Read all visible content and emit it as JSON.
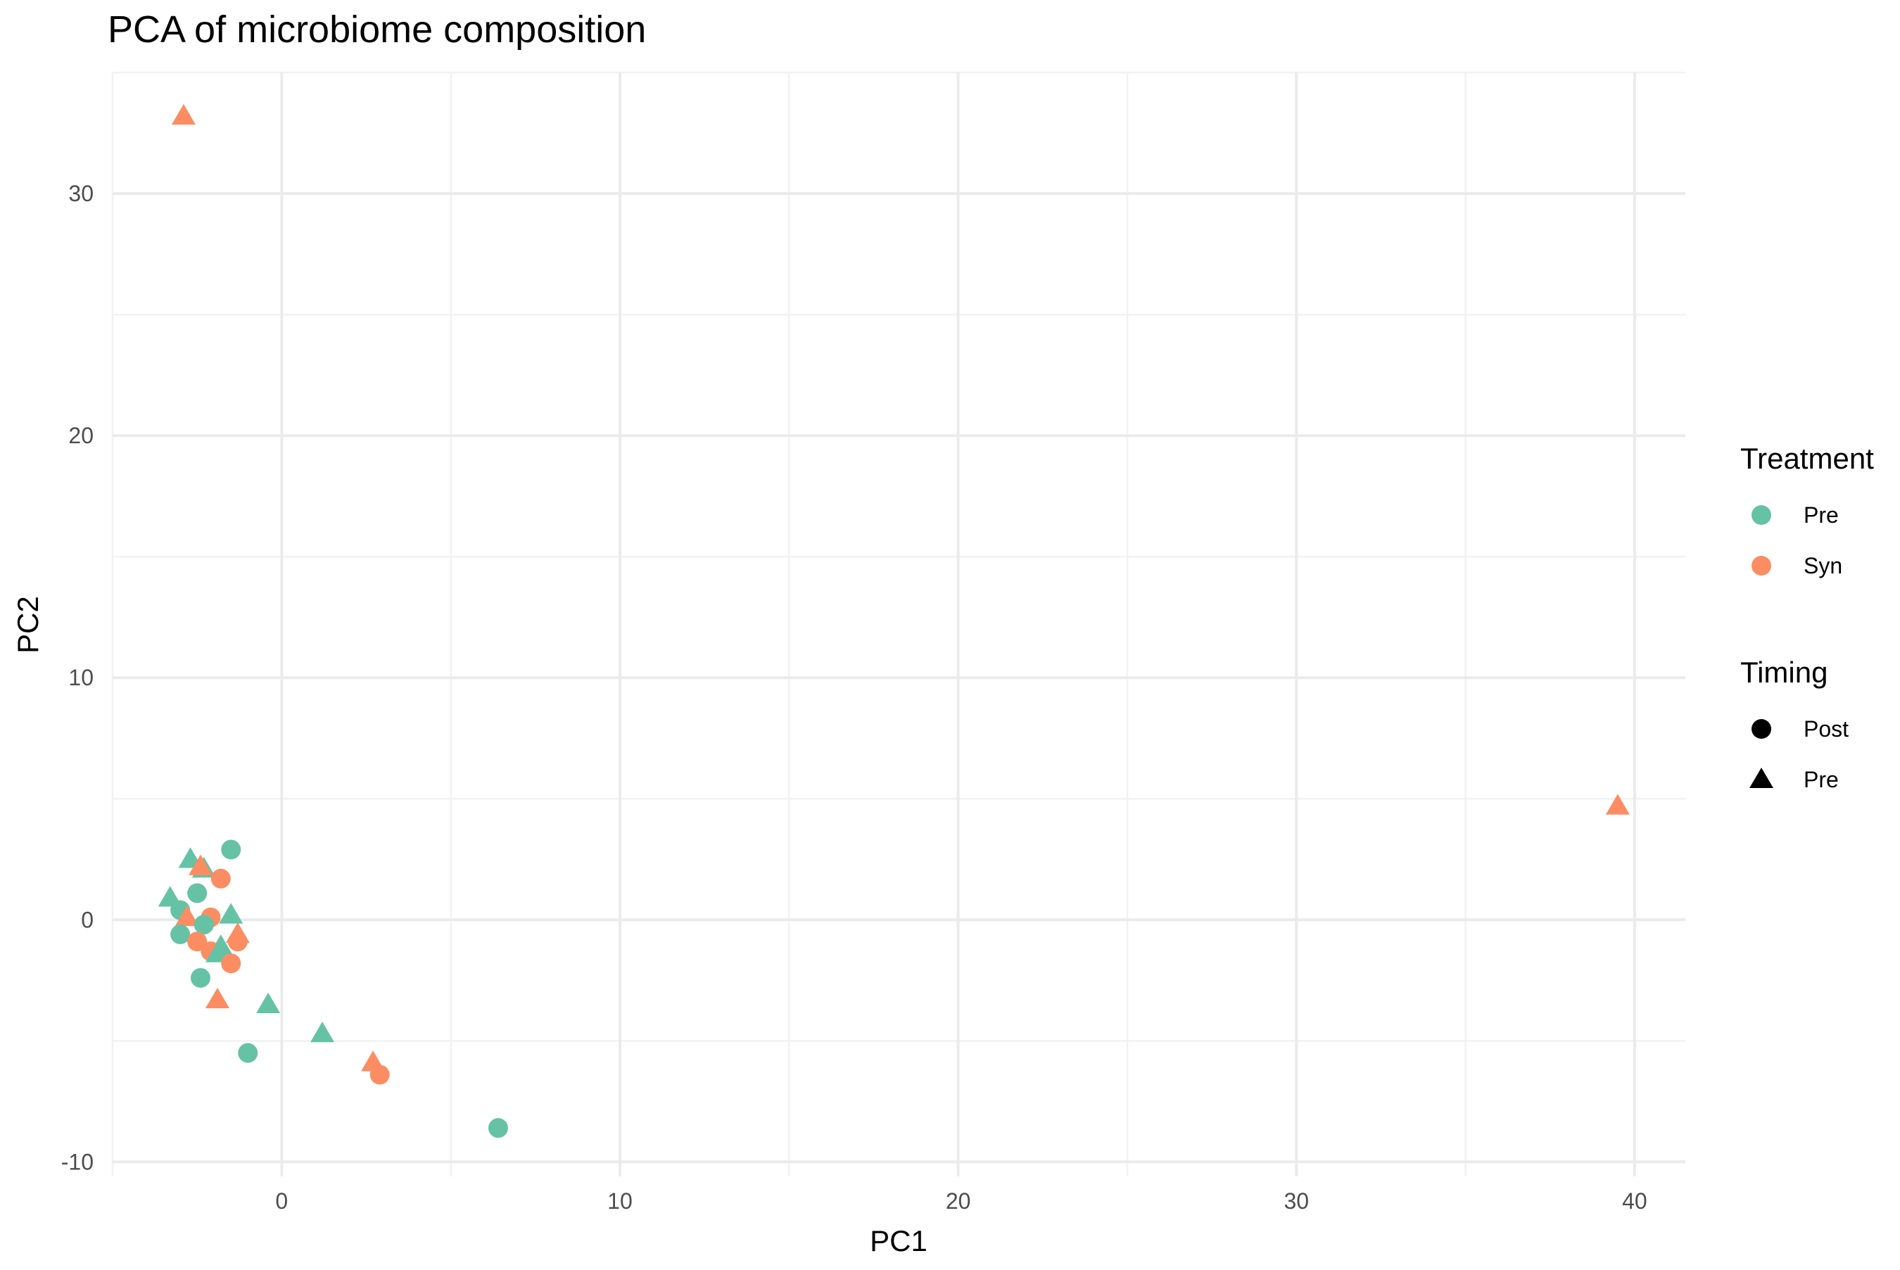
{
  "chart_data": {
    "type": "scatter",
    "title": "PCA of microbiome composition",
    "xlabel": "PC1",
    "ylabel": "PC2",
    "xlim": [
      -5,
      41.5
    ],
    "ylim": [
      -10.6,
      35
    ],
    "x_ticks": [
      0,
      10,
      20,
      30,
      40
    ],
    "y_ticks": [
      -10,
      0,
      10,
      20,
      30
    ],
    "grid": true,
    "legend_position": "right",
    "legends": [
      {
        "title": "Treatment",
        "aesthetic": "color",
        "entries": [
          {
            "label": "Pre",
            "color": "#66c2a5"
          },
          {
            "label": "Syn",
            "color": "#fc8d62"
          }
        ]
      },
      {
        "title": "Timing",
        "aesthetic": "shape",
        "entries": [
          {
            "label": "Post",
            "shape": "circle"
          },
          {
            "label": "Pre",
            "shape": "triangle"
          }
        ]
      }
    ],
    "colors": {
      "Pre": "#66c2a5",
      "Syn": "#fc8d62"
    },
    "points": [
      {
        "x": -2.9,
        "y": 33.2,
        "treatment": "Syn",
        "timing": "Pre"
      },
      {
        "x": 39.5,
        "y": 4.7,
        "treatment": "Syn",
        "timing": "Pre"
      },
      {
        "x": 6.4,
        "y": -8.6,
        "treatment": "Pre",
        "timing": "Post"
      },
      {
        "x": 2.9,
        "y": -6.4,
        "treatment": "Syn",
        "timing": "Post"
      },
      {
        "x": 2.7,
        "y": -5.9,
        "treatment": "Syn",
        "timing": "Pre"
      },
      {
        "x": 1.2,
        "y": -4.7,
        "treatment": "Pre",
        "timing": "Pre"
      },
      {
        "x": -1.0,
        "y": -5.5,
        "treatment": "Pre",
        "timing": "Post"
      },
      {
        "x": -0.4,
        "y": -3.5,
        "treatment": "Pre",
        "timing": "Pre"
      },
      {
        "x": -1.9,
        "y": -3.3,
        "treatment": "Syn",
        "timing": "Pre"
      },
      {
        "x": -2.4,
        "y": -2.4,
        "treatment": "Pre",
        "timing": "Post"
      },
      {
        "x": -1.5,
        "y": 2.9,
        "treatment": "Pre",
        "timing": "Post"
      },
      {
        "x": -2.7,
        "y": 2.5,
        "treatment": "Pre",
        "timing": "Pre"
      },
      {
        "x": -2.3,
        "y": 2.1,
        "treatment": "Pre",
        "timing": "Pre"
      },
      {
        "x": -2.4,
        "y": 2.2,
        "treatment": "Syn",
        "timing": "Pre"
      },
      {
        "x": -1.8,
        "y": 1.7,
        "treatment": "Syn",
        "timing": "Post"
      },
      {
        "x": -2.5,
        "y": 1.1,
        "treatment": "Pre",
        "timing": "Post"
      },
      {
        "x": -3.3,
        "y": 0.9,
        "treatment": "Pre",
        "timing": "Pre"
      },
      {
        "x": -3.0,
        "y": 0.4,
        "treatment": "Pre",
        "timing": "Post"
      },
      {
        "x": -2.8,
        "y": 0.1,
        "treatment": "Syn",
        "timing": "Pre"
      },
      {
        "x": -2.1,
        "y": 0.1,
        "treatment": "Syn",
        "timing": "Post"
      },
      {
        "x": -1.5,
        "y": 0.2,
        "treatment": "Pre",
        "timing": "Pre"
      },
      {
        "x": -2.3,
        "y": -0.2,
        "treatment": "Pre",
        "timing": "Post"
      },
      {
        "x": -3.0,
        "y": -0.6,
        "treatment": "Pre",
        "timing": "Post"
      },
      {
        "x": -1.3,
        "y": -0.6,
        "treatment": "Syn",
        "timing": "Pre"
      },
      {
        "x": -2.5,
        "y": -0.9,
        "treatment": "Syn",
        "timing": "Post"
      },
      {
        "x": -1.3,
        "y": -0.9,
        "treatment": "Syn",
        "timing": "Post"
      },
      {
        "x": -1.8,
        "y": -1.1,
        "treatment": "Pre",
        "timing": "Pre"
      },
      {
        "x": -2.1,
        "y": -1.3,
        "treatment": "Syn",
        "timing": "Post"
      },
      {
        "x": -1.9,
        "y": -1.4,
        "treatment": "Pre",
        "timing": "Pre"
      },
      {
        "x": -1.5,
        "y": -1.8,
        "treatment": "Syn",
        "timing": "Post"
      }
    ]
  }
}
